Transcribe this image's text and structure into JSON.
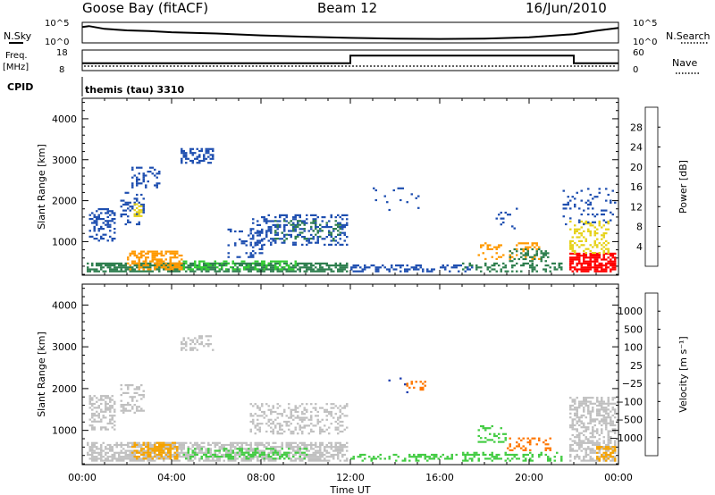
{
  "header": {
    "station": "Goose Bay (fitACF)",
    "beam": "Beam 12",
    "date": "16/Jun/2010"
  },
  "top_panels": {
    "nsky_label": "N.Sky",
    "nsky_ticks": [
      "10^5",
      "10^0"
    ],
    "nsearch_label": "N.Search",
    "nsearch_ticks": [
      "10^5",
      "10^0"
    ],
    "freq_label_1": "Freq.",
    "freq_label_2": "[MHz]",
    "freq_ticks": [
      "18",
      "8"
    ],
    "nave_label": "Nave",
    "nave_ticks": [
      "60",
      "0"
    ],
    "cpid_label": "CPID",
    "cpid_value": "themis (tau) 3310"
  },
  "chart_data": [
    {
      "type": "heatmap",
      "panel": "power",
      "ylabel": "Slant Range [km]",
      "xlabel": "Time UT",
      "x_ticks": [
        "00:00",
        "04:00",
        "08:00",
        "12:00",
        "16:00",
        "20:00",
        "00:00"
      ],
      "y_ticks": [
        1000,
        2000,
        3000,
        4000
      ],
      "ylim": [
        180,
        4500
      ],
      "xlim_hours": [
        0,
        24
      ],
      "colorbar": {
        "label": "Power [dB]",
        "ticks": [
          "4",
          "8",
          "12",
          "16",
          "20",
          "24",
          "28"
        ],
        "colors": [
          "#0000ff",
          "#1f4fb0",
          "#2f7f4f",
          "#33cc33",
          "#e6d21a",
          "#ff9900",
          "#ff5500",
          "#ff0000"
        ]
      },
      "regions": [
        {
          "t0": 0.2,
          "t1": 11.8,
          "r0": 250,
          "r1": 480,
          "color": "#2f7f4f",
          "d": 0.7
        },
        {
          "t0": 2.0,
          "t1": 4.5,
          "r0": 300,
          "r1": 750,
          "color": "#ff9900",
          "d": 0.55
        },
        {
          "t0": 4.5,
          "t1": 9.5,
          "r0": 300,
          "r1": 500,
          "color": "#33cc33",
          "d": 0.4
        },
        {
          "t0": 0.3,
          "t1": 1.5,
          "r0": 1000,
          "r1": 1800,
          "color": "#1f4fb0",
          "d": 0.35
        },
        {
          "t0": 1.7,
          "t1": 2.8,
          "r0": 1400,
          "r1": 2200,
          "color": "#1f4fb0",
          "d": 0.3
        },
        {
          "t0": 2.3,
          "t1": 2.7,
          "r0": 1600,
          "r1": 1950,
          "color": "#e6d21a",
          "d": 0.4
        },
        {
          "t0": 2.2,
          "t1": 3.5,
          "r0": 2300,
          "r1": 2800,
          "color": "#1f4fb0",
          "d": 0.25
        },
        {
          "t0": 4.4,
          "t1": 5.8,
          "r0": 2900,
          "r1": 3250,
          "color": "#1f4fb0",
          "d": 0.5
        },
        {
          "t0": 6.5,
          "t1": 8.0,
          "r0": 600,
          "r1": 1300,
          "color": "#1f4fb0",
          "d": 0.2
        },
        {
          "t0": 7.5,
          "t1": 11.8,
          "r0": 900,
          "r1": 1650,
          "color": "#1f4fb0",
          "d": 0.35
        },
        {
          "t0": 8.5,
          "t1": 11.5,
          "r0": 1000,
          "r1": 1500,
          "color": "#2f7f4f",
          "d": 0.2
        },
        {
          "t0": 12.0,
          "t1": 17.5,
          "r0": 250,
          "r1": 420,
          "color": "#1f4fb0",
          "d": 0.35
        },
        {
          "t0": 17.0,
          "t1": 21.5,
          "r0": 250,
          "r1": 450,
          "color": "#2f7f4f",
          "d": 0.3
        },
        {
          "t0": 17.7,
          "t1": 20.5,
          "r0": 550,
          "r1": 950,
          "color": "#ff9900",
          "d": 0.25
        },
        {
          "t0": 19.0,
          "t1": 21.0,
          "r0": 500,
          "r1": 800,
          "color": "#2f7f4f",
          "d": 0.25
        },
        {
          "t0": 21.8,
          "t1": 23.9,
          "r0": 250,
          "r1": 700,
          "color": "#ff0000",
          "d": 0.75
        },
        {
          "t0": 21.8,
          "t1": 23.6,
          "r0": 700,
          "r1": 1500,
          "color": "#e6d21a",
          "d": 0.3
        },
        {
          "t0": 21.5,
          "t1": 23.9,
          "r0": 1400,
          "r1": 2300,
          "color": "#1f4fb0",
          "d": 0.12
        },
        {
          "t0": 13.0,
          "t1": 15.0,
          "r0": 1700,
          "r1": 2300,
          "color": "#1f4fb0",
          "d": 0.04
        },
        {
          "t0": 18.5,
          "t1": 19.5,
          "r0": 1300,
          "r1": 1900,
          "color": "#1f4fb0",
          "d": 0.1
        }
      ]
    },
    {
      "type": "heatmap",
      "panel": "velocity",
      "ylabel": "Slant Range [km]",
      "xlabel": "Time UT",
      "x_ticks": [
        "00:00",
        "04:00",
        "08:00",
        "12:00",
        "16:00",
        "20:00",
        "00:00"
      ],
      "y_ticks": [
        1000,
        2000,
        3000,
        4000
      ],
      "ylim": [
        180,
        4500
      ],
      "xlim_hours": [
        0,
        24
      ],
      "colorbar": {
        "label": "Velocity [m s⁻¹]",
        "ticks": [
          "1000",
          "500",
          "100",
          "25",
          "−25",
          "−100",
          "−500",
          "−1000"
        ],
        "colors": [
          "#2040b0",
          "#2f7f4f",
          "#33aa33",
          "#44cc44",
          "#c0c0c0",
          "#f5a300",
          "#ff7700",
          "#ff3300",
          "#ff0000"
        ]
      },
      "regions": [
        {
          "t0": 0.2,
          "t1": 11.8,
          "r0": 250,
          "r1": 700,
          "color": "#c0c0c0",
          "d": 0.65
        },
        {
          "t0": 2.2,
          "t1": 4.3,
          "r0": 300,
          "r1": 700,
          "color": "#f5a300",
          "d": 0.45
        },
        {
          "t0": 4.5,
          "t1": 10.0,
          "r0": 300,
          "r1": 550,
          "color": "#44cc44",
          "d": 0.35
        },
        {
          "t0": 0.3,
          "t1": 1.5,
          "r0": 1000,
          "r1": 1800,
          "color": "#c0c0c0",
          "d": 0.45
        },
        {
          "t0": 1.7,
          "t1": 2.8,
          "r0": 1400,
          "r1": 2100,
          "color": "#c0c0c0",
          "d": 0.4
        },
        {
          "t0": 4.4,
          "t1": 5.8,
          "r0": 2900,
          "r1": 3250,
          "color": "#c0c0c0",
          "d": 0.45
        },
        {
          "t0": 7.5,
          "t1": 11.8,
          "r0": 900,
          "r1": 1650,
          "color": "#c0c0c0",
          "d": 0.35
        },
        {
          "t0": 12.0,
          "t1": 17.5,
          "r0": 250,
          "r1": 420,
          "color": "#44cc44",
          "d": 0.35
        },
        {
          "t0": 17.0,
          "t1": 21.5,
          "r0": 250,
          "r1": 450,
          "color": "#44cc44",
          "d": 0.3
        },
        {
          "t0": 17.7,
          "t1": 19.0,
          "r0": 700,
          "r1": 1100,
          "color": "#44cc44",
          "d": 0.3
        },
        {
          "t0": 19.0,
          "t1": 21.0,
          "r0": 500,
          "r1": 800,
          "color": "#ff7700",
          "d": 0.25
        },
        {
          "t0": 21.8,
          "t1": 23.9,
          "r0": 250,
          "r1": 1800,
          "color": "#c0c0c0",
          "d": 0.55
        },
        {
          "t0": 23.0,
          "t1": 23.9,
          "r0": 250,
          "r1": 600,
          "color": "#f5a300",
          "d": 0.45
        },
        {
          "t0": 14.5,
          "t1": 15.3,
          "r0": 1950,
          "r1": 2150,
          "color": "#ff7700",
          "d": 0.35
        },
        {
          "t0": 13.0,
          "t1": 15.0,
          "r0": 1700,
          "r1": 2300,
          "color": "#2040b0",
          "d": 0.04
        }
      ]
    }
  ],
  "nsky_trace": [
    [
      0.0,
      0.8
    ],
    [
      0.3,
      0.85
    ],
    [
      1.0,
      0.7
    ],
    [
      2.0,
      0.62
    ],
    [
      3.0,
      0.58
    ],
    [
      4.0,
      0.52
    ],
    [
      6.0,
      0.45
    ],
    [
      8.0,
      0.35
    ],
    [
      10.0,
      0.28
    ],
    [
      12.0,
      0.22
    ],
    [
      14.0,
      0.18
    ],
    [
      16.0,
      0.16
    ],
    [
      18.0,
      0.18
    ],
    [
      20.0,
      0.25
    ],
    [
      22.0,
      0.42
    ],
    [
      23.0,
      0.6
    ],
    [
      24.0,
      0.75
    ]
  ],
  "freq_trace": [
    [
      0.0,
      0.35
    ],
    [
      12.0,
      0.35
    ],
    [
      12.0,
      0.75
    ],
    [
      22.0,
      0.75
    ],
    [
      22.0,
      0.35
    ],
    [
      24.0,
      0.35
    ]
  ]
}
